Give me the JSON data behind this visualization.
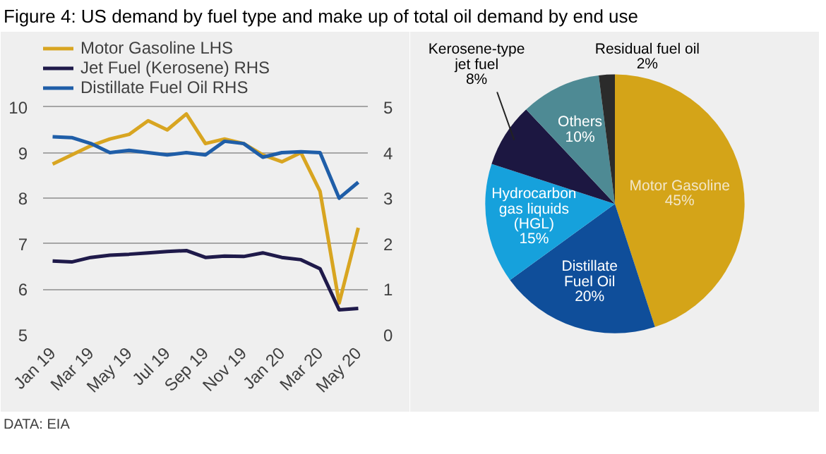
{
  "chart_data": [
    {
      "type": "line",
      "title": "Figure 4: US demand by fuel type and make up of total oil demand by end use",
      "categories": [
        "Jan 19",
        null,
        "Mar 19",
        null,
        "May 19",
        null,
        "Jul 19",
        null,
        "Sep 19",
        null,
        "Nov 19",
        null,
        "Jan 20",
        null,
        "Mar 20",
        null,
        "May 20"
      ],
      "series": [
        {
          "name": "Motor Gasoline LHS",
          "color": "#d8a521",
          "values": [
            8.75,
            8.95,
            9.15,
            9.3,
            9.4,
            9.7,
            9.5,
            9.85,
            9.2,
            9.3,
            9.2,
            8.95,
            8.8,
            9.0,
            8.15,
            5.7,
            7.35
          ]
        },
        {
          "name": "Jet Fuel (Kerosene) RHS",
          "color": "#1f1a4a",
          "axis": "y2",
          "values": [
            1.62,
            1.6,
            1.7,
            1.75,
            1.77,
            1.8,
            1.83,
            1.85,
            1.7,
            1.73,
            1.72,
            1.8,
            1.7,
            1.65,
            1.45,
            0.55,
            0.58
          ]
        },
        {
          "name": "Distillate Fuel Oil RHS",
          "color": "#1f5ea8",
          "axis": "y2",
          "values": [
            4.35,
            4.33,
            4.2,
            4.0,
            4.05,
            4.0,
            3.95,
            4.0,
            3.95,
            4.25,
            4.2,
            3.9,
            4.0,
            4.02,
            4.0,
            3.0,
            3.35
          ]
        }
      ],
      "ylim": [
        5,
        11.5
      ],
      "yticks": [
        5,
        6,
        7,
        8,
        9,
        10
      ],
      "y2lim": [
        0,
        6.5
      ],
      "y2ticks": [
        0,
        1,
        2,
        3,
        4,
        5
      ],
      "grid": "y",
      "legend": "top left",
      "annotations": [
        "DATA: EIA"
      ]
    },
    {
      "type": "pie",
      "categories": [
        "Motor Gasoline",
        "Distillate Fuel Oil",
        "Hydrocarbon gas liquids (HGL)",
        "Kerosene-type jet fuel",
        "Others",
        "Residual fuel oil"
      ],
      "values": [
        45,
        20,
        15,
        8,
        10,
        2
      ],
      "colors": [
        "#d4a418",
        "#0f4e9a",
        "#16a1dc",
        "#1c1741",
        "#4e8a94",
        "#2b2b2b"
      ],
      "value_labels": [
        "45%",
        "20%",
        "15%",
        "8%",
        "10%",
        "2%"
      ]
    }
  ]
}
